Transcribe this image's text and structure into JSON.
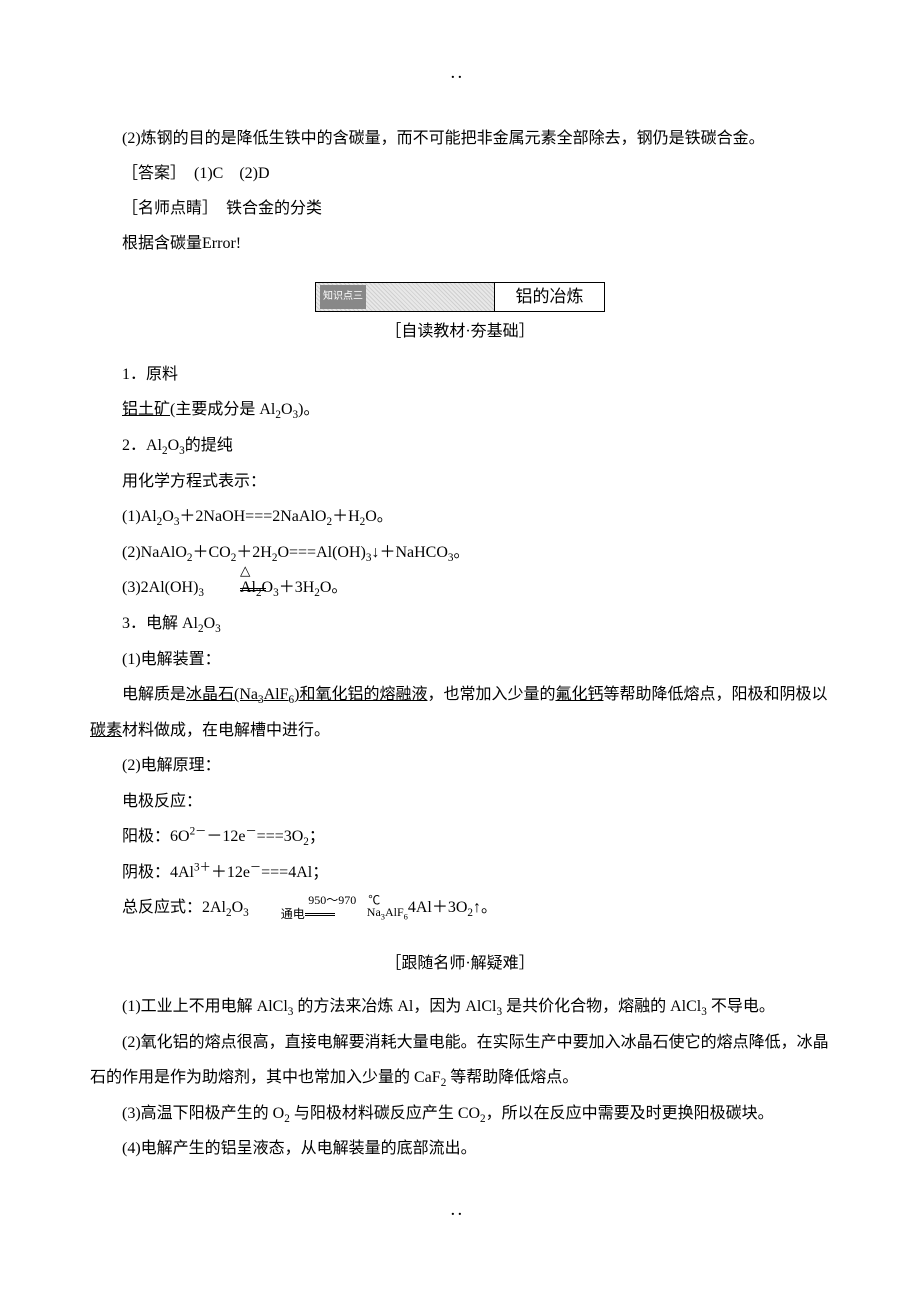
{
  "dots": "．．",
  "p1": "(2)炼钢的目的是降低生铁中的含碳量，而不可能把非金属元素全部除去，钢仍是铁碳合金。",
  "answer_line": "［答案］　(1)C　(2)D",
  "teacher_note": "［名师点睛］　铁合金的分类",
  "carbon_line_pre": "根据含碳量",
  "carbon_line_err": "Error!",
  "section": {
    "badge": "知识点三",
    "title": "铝的冶炼"
  },
  "sub1": "［自读教材·夯基础］",
  "item1_title": "1．原料",
  "item1_body_a": "铝土矿",
  "item1_body_b": "(主要成分是 Al",
  "item1_body_c": ")。",
  "item2_title_a": "2．Al",
  "item2_title_b": "的提纯",
  "item2_body": "用化学方程式表示：",
  "eq1_a": "(1)Al",
  "eq1_b": "＋2NaOH===2NaAlO",
  "eq1_c": "＋H",
  "eq1_d": "O。",
  "eq2_a": "(2)NaAlO",
  "eq2_b": "＋CO",
  "eq2_c": "＋2H",
  "eq2_d": "O===Al(OH)",
  "eq2_e": "↓＋NaHCO",
  "eq2_f": "。",
  "eq3_a": "(3)2Al(OH)",
  "eq3_b": " Al",
  "eq3_c": "＋3H",
  "eq3_d": "O。",
  "triangle": "△",
  "item3_a": "3．电解 Al",
  "item3_b": "",
  "elec1": "(1)电解装置：",
  "elec1_body_a": "电解质是",
  "elec1_body_b": "冰晶石(Na",
  "elec1_body_c": "AlF",
  "elec1_body_d": ")和氧化铝的熔融液",
  "elec1_body_e": "，也常加入少量的",
  "elec1_body_f": "氟化钙",
  "elec1_body_g": "等帮助降低熔点，阳极和阴极以",
  "elec1_body_h": "碳素",
  "elec1_body_i": "材料做成，在电解槽中进行。",
  "elec2": "(2)电解原理：",
  "electrode_label": "电极反应：",
  "anode_a": "阳极：6O",
  "anode_b": "－12e",
  "anode_c": "===3O",
  "anode_d": "；",
  "cathode_a": "阴极：4Al",
  "cathode_b": "＋12e",
  "cathode_c": "===4Al；",
  "total_a": "总反应式：2Al",
  "total_b": "4Al＋3O",
  "total_c": "↑。",
  "cond_top": "950～970　℃",
  "cond_left": "通电",
  "cond_bot_a": "Na",
  "cond_bot_b": "AlF",
  "sub2": "［跟随名师·解疑难］",
  "q1_a": "(1)工业上不用电解 AlCl",
  "q1_b": " 的方法来冶炼 Al，因为 AlCl",
  "q1_c": " 是共价化合物，熔融的 AlCl",
  "q1_d": " 不导电。",
  "q2_a": "(2)氧化铝的熔点很高，直接电解要消耗大量电能。在实际生产中要加入冰晶石使它的熔点降低，冰晶石的作用是作为助熔剂，其中也常加入少量的 CaF",
  "q2_b": " 等帮助降低熔点。",
  "q3_a": "(3)高温下阳极产生的 O",
  "q3_b": " 与阳极材料碳反应产生 CO",
  "q3_c": "，所以在反应中需要及时更换阳极碳块。",
  "q4": "(4)电解产生的铝呈液态，从电解装量的底部流出。"
}
